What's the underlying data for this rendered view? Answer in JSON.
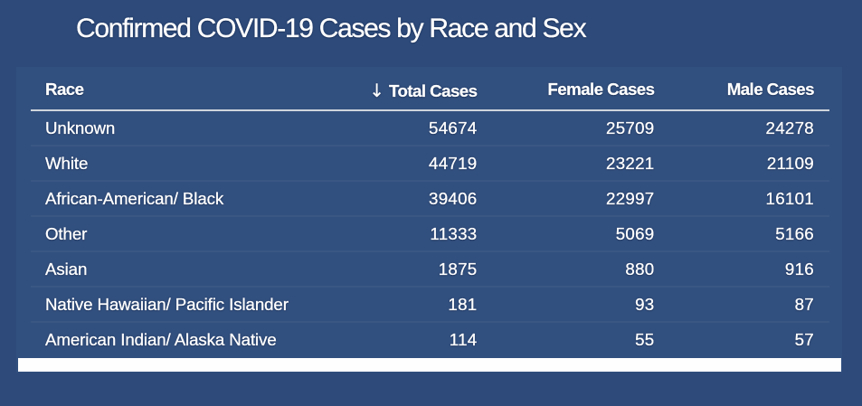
{
  "title": "Confirmed COVID-19 Cases by Race and Sex",
  "colors": {
    "background": "#2d4a7a",
    "panel_background": "#32507f",
    "text": "#ffffff",
    "header_underline": "#cfd5dc",
    "row_separator": "rgba(255,255,255,0.045)",
    "scrollbar": "#fefefe"
  },
  "table": {
    "sort_indicator": "↓",
    "sorted_column": "Total Cases",
    "columns": [
      {
        "label": "Race",
        "align": "left"
      },
      {
        "label": "Total Cases",
        "align": "right"
      },
      {
        "label": "Female Cases",
        "align": "right"
      },
      {
        "label": "Male Cases",
        "align": "right"
      }
    ]
  },
  "chart_data": {
    "type": "table",
    "title": "Confirmed COVID-19 Cases by Race and Sex",
    "columns": [
      "Race",
      "Total Cases",
      "Female Cases",
      "Male Cases"
    ],
    "sort": {
      "column": "Total Cases",
      "direction": "descending",
      "indicator": "↓"
    },
    "rows": [
      {
        "race": "Unknown",
        "total": "54674",
        "female": "25709",
        "male": "24278"
      },
      {
        "race": "White",
        "total": "44719",
        "female": "23221",
        "male": "21109"
      },
      {
        "race": "African-American/ Black",
        "total": "39406",
        "female": "22997",
        "male": "16101"
      },
      {
        "race": "Other",
        "total": "11333",
        "female": "5069",
        "male": "5166"
      },
      {
        "race": "Asian",
        "total": "1875",
        "female": "880",
        "male": "916"
      },
      {
        "race": "Native Hawaiian/ Pacific Islander",
        "total": "181",
        "female": "93",
        "male": "87"
      },
      {
        "race": "American Indian/ Alaska Native",
        "total": "114",
        "female": "55",
        "male": "57"
      }
    ]
  }
}
